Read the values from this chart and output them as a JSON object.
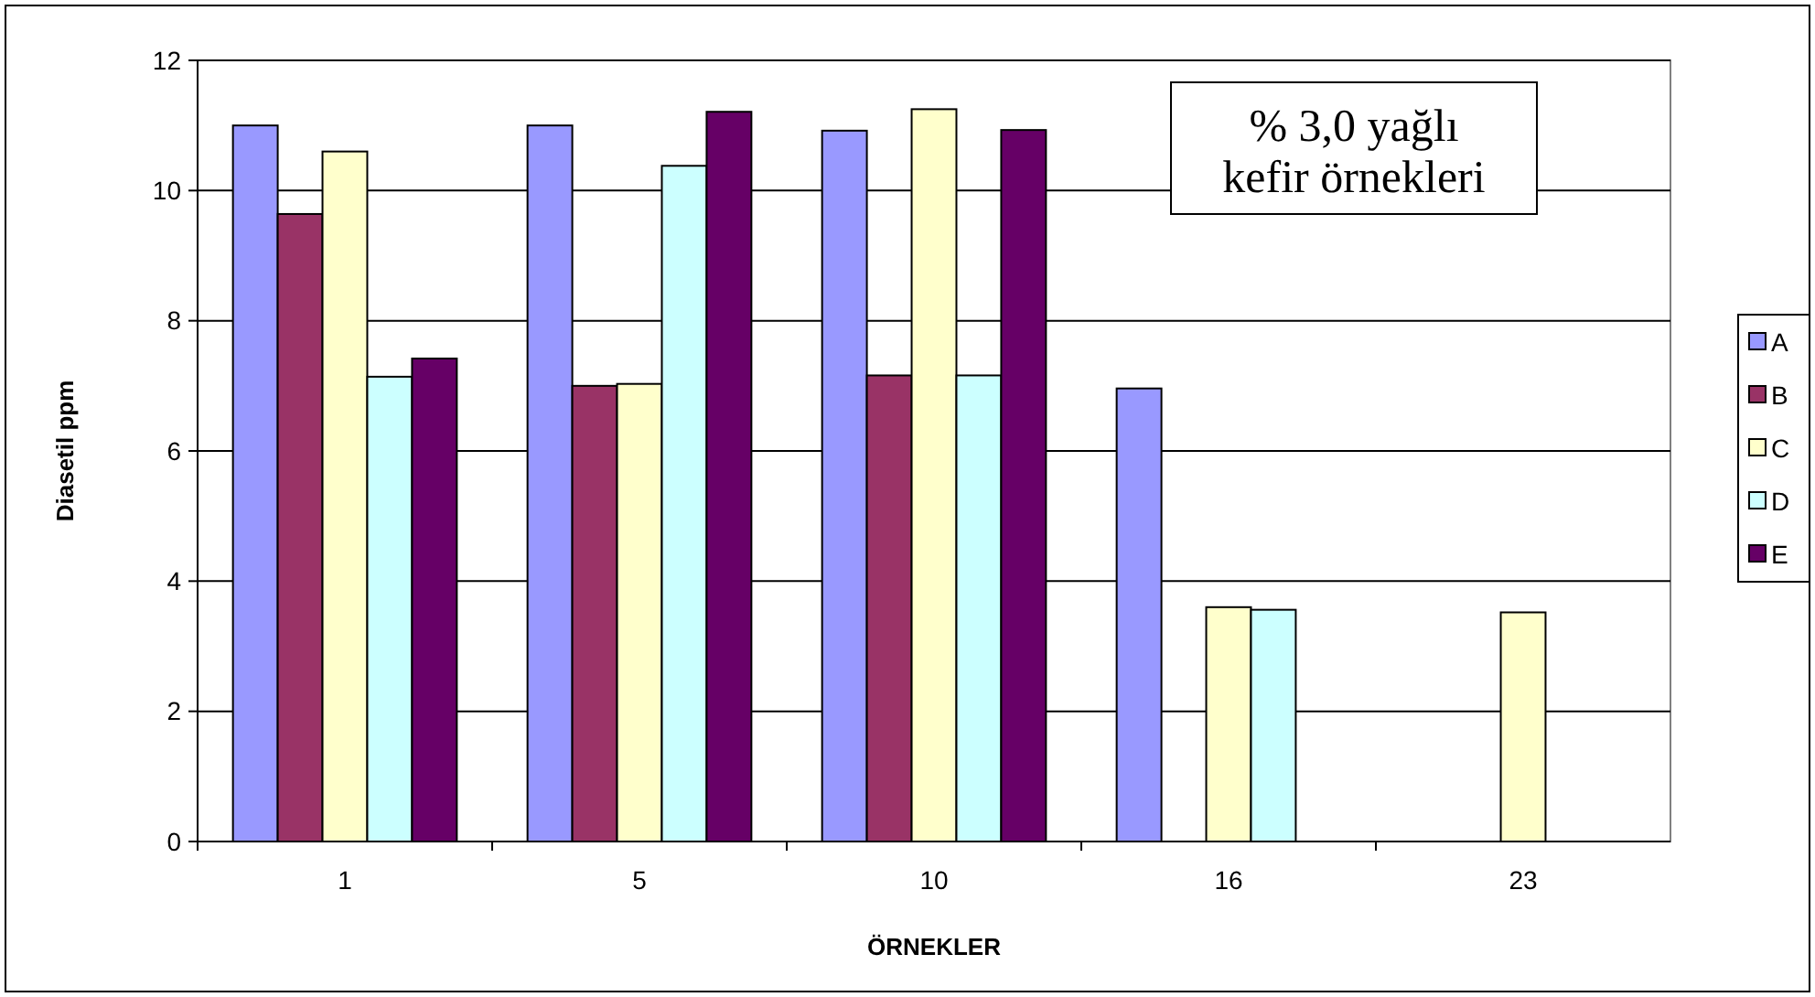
{
  "chart_data": {
    "type": "bar",
    "xlabel": "ÖRNEKLER",
    "ylabel": "Diasetil ppm",
    "annotations": [
      "% 3,0 yağlı\nkefir örnekleri"
    ],
    "categories": [
      "1",
      "5",
      "10",
      "16",
      "23"
    ],
    "series": [
      {
        "name": "A",
        "color": "#9999ff",
        "values": [
          11.0,
          11.0,
          10.92,
          6.96,
          null
        ]
      },
      {
        "name": "B",
        "color": "#993366",
        "values": [
          9.64,
          7.0,
          7.16,
          null,
          null
        ]
      },
      {
        "name": "C",
        "color": "#ffffcc",
        "values": [
          10.6,
          7.03,
          11.25,
          3.6,
          3.52
        ]
      },
      {
        "name": "D",
        "color": "#ccffff",
        "values": [
          7.14,
          10.38,
          7.16,
          3.56,
          null
        ]
      },
      {
        "name": "E",
        "color": "#660066",
        "values": [
          7.42,
          11.21,
          10.93,
          null,
          null
        ]
      }
    ],
    "ylim": [
      0,
      12
    ],
    "yticks": [
      0,
      2,
      4,
      6,
      8,
      10,
      12
    ],
    "grid": "y",
    "legend": "right"
  }
}
